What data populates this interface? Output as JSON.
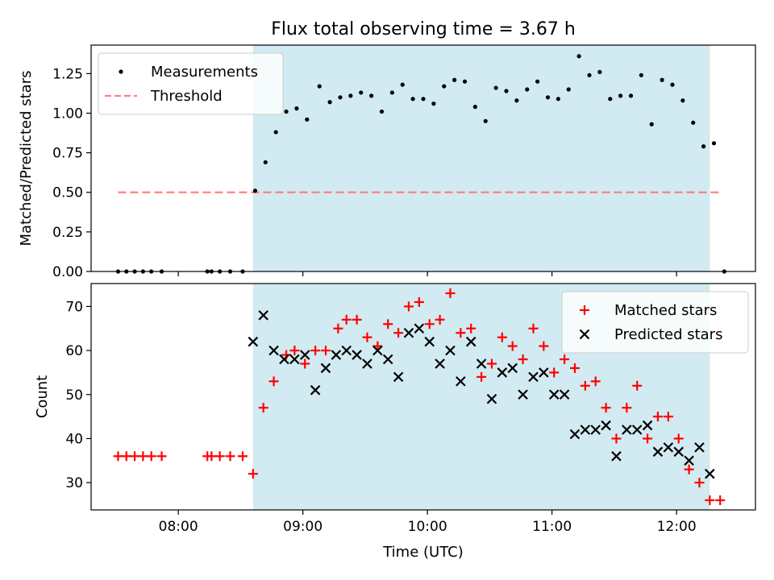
{
  "chart_data": [
    {
      "type": "scatter",
      "title": "Flux total observing time = 3.67 h",
      "xlabel": "",
      "ylabel": "Matched/Predicted stars",
      "ylim": [
        0,
        1.43
      ],
      "yticks": [
        "0.00",
        "0.25",
        "0.50",
        "0.75",
        "1.00",
        "1.25"
      ],
      "ytick_values": [
        0,
        0.25,
        0.5,
        0.75,
        1.0,
        1.25
      ],
      "xlim": [
        "07:18",
        "12:38"
      ],
      "x_tick_labels_shown": false,
      "highlight_span": [
        "08:36",
        "12:16"
      ],
      "highlight_color": "#add8e6",
      "legend_position": "upper-left",
      "threshold": {
        "name": "Threshold",
        "value": 0.5,
        "x_start": "07:31",
        "x_end": "12:21",
        "color": "#ff8080",
        "style": "dashed"
      },
      "series": [
        {
          "name": "Measurements",
          "color": "#000000",
          "marker": "dot",
          "points": [
            [
              "07:31",
              0
            ],
            [
              "07:35",
              0
            ],
            [
              "07:39",
              0
            ],
            [
              "07:43",
              0
            ],
            [
              "07:47",
              0
            ],
            [
              "07:52",
              0
            ],
            [
              "08:14",
              0
            ],
            [
              "08:16",
              0
            ],
            [
              "08:20",
              0
            ],
            [
              "08:25",
              0
            ],
            [
              "08:31",
              0
            ],
            [
              "08:37",
              0.51
            ],
            [
              "08:42",
              0.69
            ],
            [
              "08:47",
              0.88
            ],
            [
              "08:52",
              1.01
            ],
            [
              "08:57",
              1.03
            ],
            [
              "09:02",
              0.96
            ],
            [
              "09:08",
              1.17
            ],
            [
              "09:13",
              1.07
            ],
            [
              "09:18",
              1.1
            ],
            [
              "09:23",
              1.11
            ],
            [
              "09:28",
              1.13
            ],
            [
              "09:33",
              1.11
            ],
            [
              "09:38",
              1.01
            ],
            [
              "09:43",
              1.13
            ],
            [
              "09:48",
              1.18
            ],
            [
              "09:53",
              1.09
            ],
            [
              "09:58",
              1.09
            ],
            [
              "10:03",
              1.06
            ],
            [
              "10:08",
              1.17
            ],
            [
              "10:13",
              1.21
            ],
            [
              "10:18",
              1.2
            ],
            [
              "10:23",
              1.04
            ],
            [
              "10:28",
              0.95
            ],
            [
              "10:33",
              1.16
            ],
            [
              "10:38",
              1.14
            ],
            [
              "10:43",
              1.08
            ],
            [
              "10:48",
              1.15
            ],
            [
              "10:53",
              1.2
            ],
            [
              "10:58",
              1.1
            ],
            [
              "11:03",
              1.09
            ],
            [
              "11:08",
              1.15
            ],
            [
              "11:13",
              1.36
            ],
            [
              "11:18",
              1.24
            ],
            [
              "11:23",
              1.26
            ],
            [
              "11:28",
              1.09
            ],
            [
              "11:33",
              1.11
            ],
            [
              "11:38",
              1.11
            ],
            [
              "11:43",
              1.24
            ],
            [
              "11:48",
              0.93
            ],
            [
              "11:53",
              1.21
            ],
            [
              "11:58",
              1.18
            ],
            [
              "12:03",
              1.08
            ],
            [
              "12:08",
              0.94
            ],
            [
              "12:13",
              0.79
            ],
            [
              "12:18",
              0.81
            ],
            [
              "12:23",
              0
            ]
          ]
        }
      ]
    },
    {
      "type": "scatter",
      "title": "",
      "xlabel": "Time (UTC)",
      "ylabel": "Count",
      "ylim": [
        23.8,
        75.2
      ],
      "yticks": [
        "30",
        "40",
        "50",
        "60",
        "70"
      ],
      "ytick_values": [
        30,
        40,
        50,
        60,
        70
      ],
      "xlim": [
        "07:18",
        "12:38"
      ],
      "xticks": [
        "08:00",
        "09:00",
        "10:00",
        "11:00",
        "12:00"
      ],
      "highlight_span": [
        "08:36",
        "12:16"
      ],
      "highlight_color": "#add8e6",
      "legend_position": "upper-right",
      "series": [
        {
          "name": "Matched stars",
          "color": "#ff0000",
          "marker": "plus",
          "points": [
            [
              "07:31",
              36
            ],
            [
              "07:35",
              36
            ],
            [
              "07:39",
              36
            ],
            [
              "07:43",
              36
            ],
            [
              "07:47",
              36
            ],
            [
              "07:52",
              36
            ],
            [
              "08:14",
              36
            ],
            [
              "08:16",
              36
            ],
            [
              "08:20",
              36
            ],
            [
              "08:25",
              36
            ],
            [
              "08:31",
              36
            ],
            [
              "08:36",
              32
            ],
            [
              "08:41",
              47
            ],
            [
              "08:46",
              53
            ],
            [
              "08:52",
              59
            ],
            [
              "08:56",
              60
            ],
            [
              "09:01",
              57
            ],
            [
              "09:06",
              60
            ],
            [
              "09:11",
              60
            ],
            [
              "09:17",
              65
            ],
            [
              "09:21",
              67
            ],
            [
              "09:26",
              67
            ],
            [
              "09:31",
              63
            ],
            [
              "09:36",
              61
            ],
            [
              "09:41",
              66
            ],
            [
              "09:46",
              64
            ],
            [
              "09:51",
              70
            ],
            [
              "09:56",
              71
            ],
            [
              "10:01",
              66
            ],
            [
              "10:06",
              67
            ],
            [
              "10:11",
              73
            ],
            [
              "10:16",
              64
            ],
            [
              "10:21",
              65
            ],
            [
              "10:26",
              54
            ],
            [
              "10:31",
              57
            ],
            [
              "10:36",
              63
            ],
            [
              "10:41",
              61
            ],
            [
              "10:46",
              58
            ],
            [
              "10:51",
              65
            ],
            [
              "10:56",
              61
            ],
            [
              "11:01",
              55
            ],
            [
              "11:06",
              58
            ],
            [
              "11:11",
              56
            ],
            [
              "11:16",
              52
            ],
            [
              "11:21",
              53
            ],
            [
              "11:26",
              47
            ],
            [
              "11:31",
              40
            ],
            [
              "11:36",
              47
            ],
            [
              "11:41",
              52
            ],
            [
              "11:46",
              40
            ],
            [
              "11:51",
              45
            ],
            [
              "11:56",
              45
            ],
            [
              "12:01",
              40
            ],
            [
              "12:06",
              33
            ],
            [
              "12:11",
              30
            ],
            [
              "12:16",
              26
            ],
            [
              "12:21",
              26
            ]
          ]
        },
        {
          "name": "Predicted stars",
          "color": "#000000",
          "marker": "x",
          "points": [
            [
              "08:36",
              62
            ],
            [
              "08:41",
              68
            ],
            [
              "08:46",
              60
            ],
            [
              "08:51",
              58
            ],
            [
              "08:56",
              58
            ],
            [
              "09:01",
              59
            ],
            [
              "09:06",
              51
            ],
            [
              "09:11",
              56
            ],
            [
              "09:16",
              59
            ],
            [
              "09:21",
              60
            ],
            [
              "09:26",
              59
            ],
            [
              "09:31",
              57
            ],
            [
              "09:36",
              60
            ],
            [
              "09:41",
              58
            ],
            [
              "09:46",
              54
            ],
            [
              "09:51",
              64
            ],
            [
              "09:56",
              65
            ],
            [
              "10:01",
              62
            ],
            [
              "10:06",
              57
            ],
            [
              "10:11",
              60
            ],
            [
              "10:16",
              53
            ],
            [
              "10:21",
              62
            ],
            [
              "10:26",
              57
            ],
            [
              "10:31",
              49
            ],
            [
              "10:36",
              55
            ],
            [
              "10:41",
              56
            ],
            [
              "10:46",
              50
            ],
            [
              "10:51",
              54
            ],
            [
              "10:56",
              55
            ],
            [
              "11:01",
              50
            ],
            [
              "11:06",
              50
            ],
            [
              "11:11",
              41
            ],
            [
              "11:16",
              42
            ],
            [
              "11:21",
              42
            ],
            [
              "11:26",
              43
            ],
            [
              "11:31",
              36
            ],
            [
              "11:36",
              42
            ],
            [
              "11:41",
              42
            ],
            [
              "11:46",
              43
            ],
            [
              "11:51",
              37
            ],
            [
              "11:56",
              38
            ],
            [
              "12:01",
              37
            ],
            [
              "12:06",
              35
            ],
            [
              "12:11",
              38
            ],
            [
              "12:16",
              32
            ]
          ]
        }
      ]
    }
  ]
}
